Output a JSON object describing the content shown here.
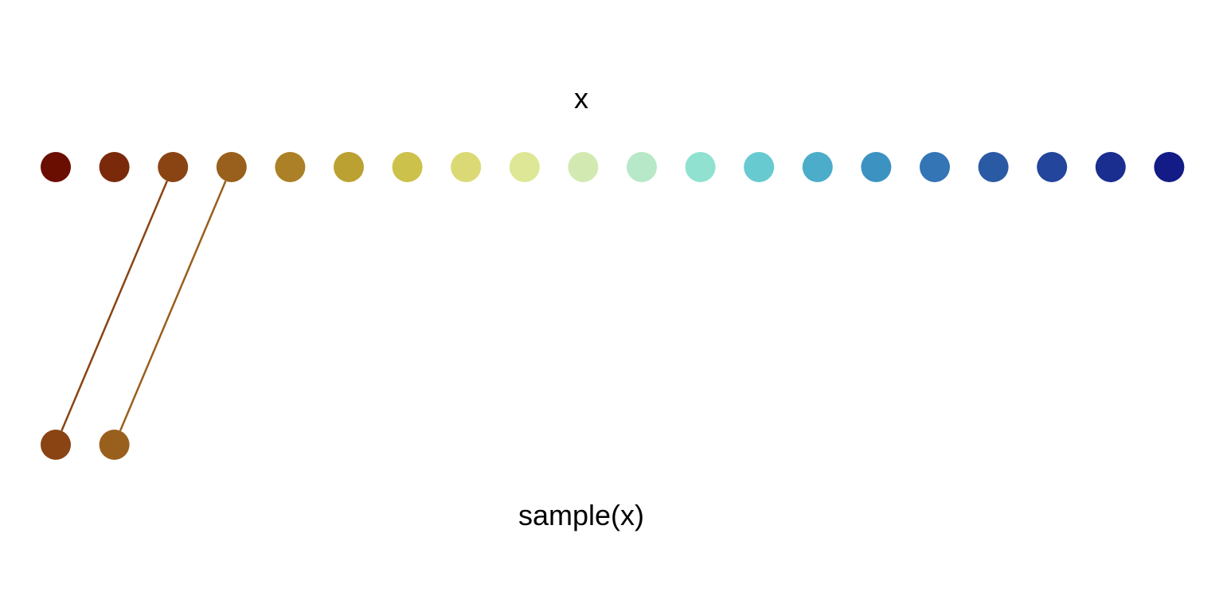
{
  "top_label": "x",
  "bottom_label": "sample(x)",
  "source_points": [
    {
      "index": 1,
      "color": "#6B0E02"
    },
    {
      "index": 2,
      "color": "#7A290B"
    },
    {
      "index": 3,
      "color": "#8A4414"
    },
    {
      "index": 4,
      "color": "#995F1C"
    },
    {
      "index": 5,
      "color": "#AB8026"
    },
    {
      "index": 6,
      "color": "#BBA132"
    },
    {
      "index": 7,
      "color": "#CCC14A"
    },
    {
      "index": 8,
      "color": "#DBD975"
    },
    {
      "index": 9,
      "color": "#DDE795"
    },
    {
      "index": 10,
      "color": "#D2EAB2"
    },
    {
      "index": 11,
      "color": "#B7E8C8"
    },
    {
      "index": 12,
      "color": "#90E1D0"
    },
    {
      "index": 13,
      "color": "#67CAD1"
    },
    {
      "index": 14,
      "color": "#4BADCA"
    },
    {
      "index": 15,
      "color": "#3C92C1"
    },
    {
      "index": 16,
      "color": "#3375B5"
    },
    {
      "index": 17,
      "color": "#2B5AA5"
    },
    {
      "index": 18,
      "color": "#23459B"
    },
    {
      "index": 19,
      "color": "#1A2E90"
    },
    {
      "index": 20,
      "color": "#131B87"
    }
  ],
  "sample_points": [
    {
      "index": 1,
      "source_index": 3,
      "color": "#8A4414"
    },
    {
      "index": 2,
      "source_index": 4,
      "color": "#995F1C"
    }
  ]
}
